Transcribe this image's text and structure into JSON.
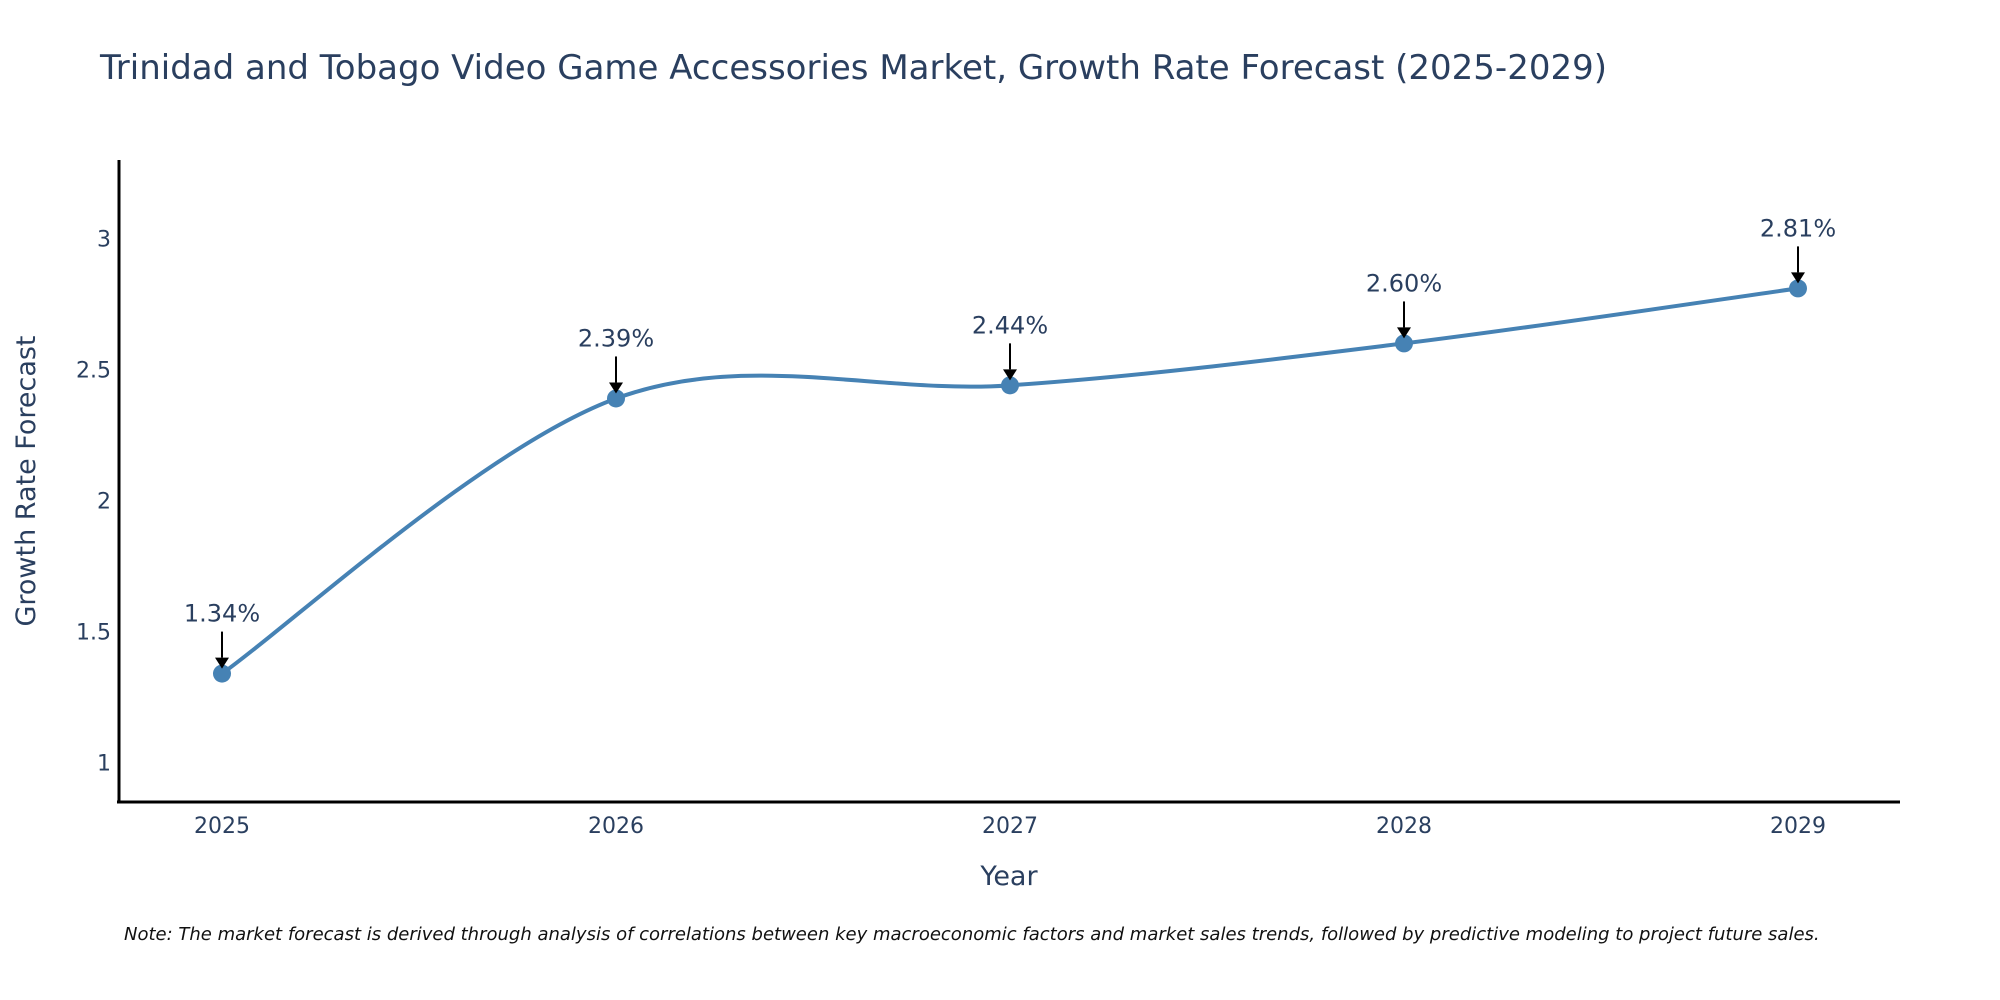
{
  "chart_data": {
    "type": "line",
    "title": "Trinidad and Tobago Video Game Accessories Market, Growth Rate Forecast (2025-2029)",
    "xlabel": "Year",
    "ylabel": "Growth Rate Forecast",
    "categories": [
      "2025",
      "2026",
      "2027",
      "2028",
      "2029"
    ],
    "series": [
      {
        "name": "Growth Rate Forecast",
        "values": [
          1.34,
          2.39,
          2.44,
          2.6,
          2.81
        ],
        "labels": [
          "1.34%",
          "2.39%",
          "2.44%",
          "2.60%",
          "2.81%"
        ],
        "color": "#4682b4"
      }
    ],
    "ylim": [
      0.85,
      3.3
    ],
    "yticks": [
      1,
      1.5,
      2,
      2.5,
      3
    ],
    "ytick_labels": [
      "1",
      "1.5",
      "2",
      "2.5",
      "3"
    ],
    "grid": false,
    "smoothing": "spline"
  },
  "note": "Note: The market forecast is derived through analysis of correlations between key macroeconomic factors and market sales trends, followed by predictive modeling to project future sales."
}
